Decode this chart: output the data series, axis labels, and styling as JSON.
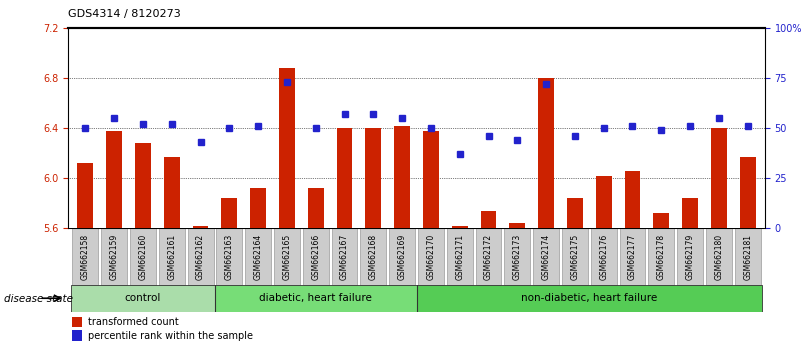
{
  "title": "GDS4314 / 8120273",
  "samples": [
    "GSM662158",
    "GSM662159",
    "GSM662160",
    "GSM662161",
    "GSM662162",
    "GSM662163",
    "GSM662164",
    "GSM662165",
    "GSM662166",
    "GSM662167",
    "GSM662168",
    "GSM662169",
    "GSM662170",
    "GSM662171",
    "GSM662172",
    "GSM662173",
    "GSM662174",
    "GSM662175",
    "GSM662176",
    "GSM662177",
    "GSM662178",
    "GSM662179",
    "GSM662180",
    "GSM662181"
  ],
  "bar_values": [
    6.12,
    6.38,
    6.28,
    6.17,
    5.62,
    5.84,
    5.92,
    6.88,
    5.92,
    6.4,
    6.4,
    6.42,
    6.38,
    5.62,
    5.74,
    5.64,
    6.8,
    5.84,
    6.02,
    6.06,
    5.72,
    5.84,
    6.4,
    6.17
  ],
  "percentile_values": [
    50,
    55,
    52,
    52,
    43,
    50,
    51,
    73,
    50,
    57,
    57,
    55,
    50,
    37,
    46,
    44,
    72,
    46,
    50,
    51,
    49,
    51,
    55,
    51
  ],
  "bar_color": "#cc2200",
  "dot_color": "#2222cc",
  "ylim_left": [
    5.6,
    7.2
  ],
  "ylim_right": [
    0,
    100
  ],
  "yticks_left": [
    5.6,
    6.0,
    6.4,
    6.8,
    7.2
  ],
  "yticks_right": [
    0,
    25,
    50,
    75,
    100
  ],
  "ytick_labels_right": [
    "0",
    "25",
    "50",
    "75",
    "100%"
  ],
  "groups": [
    {
      "label": "control",
      "start": 0,
      "end": 5
    },
    {
      "label": "diabetic, heart failure",
      "start": 5,
      "end": 12
    },
    {
      "label": "non-diabetic, heart failure",
      "start": 12,
      "end": 24
    }
  ],
  "group_colors": [
    "#aaddaa",
    "#77dd77",
    "#55cc55"
  ],
  "disease_state_label": "disease state",
  "legend_items": [
    {
      "color": "#cc2200",
      "label": "transformed count"
    },
    {
      "color": "#2222cc",
      "label": "percentile rank within the sample"
    }
  ],
  "bar_width": 0.55,
  "background_color": "#ffffff",
  "tick_label_bg": "#cccccc"
}
